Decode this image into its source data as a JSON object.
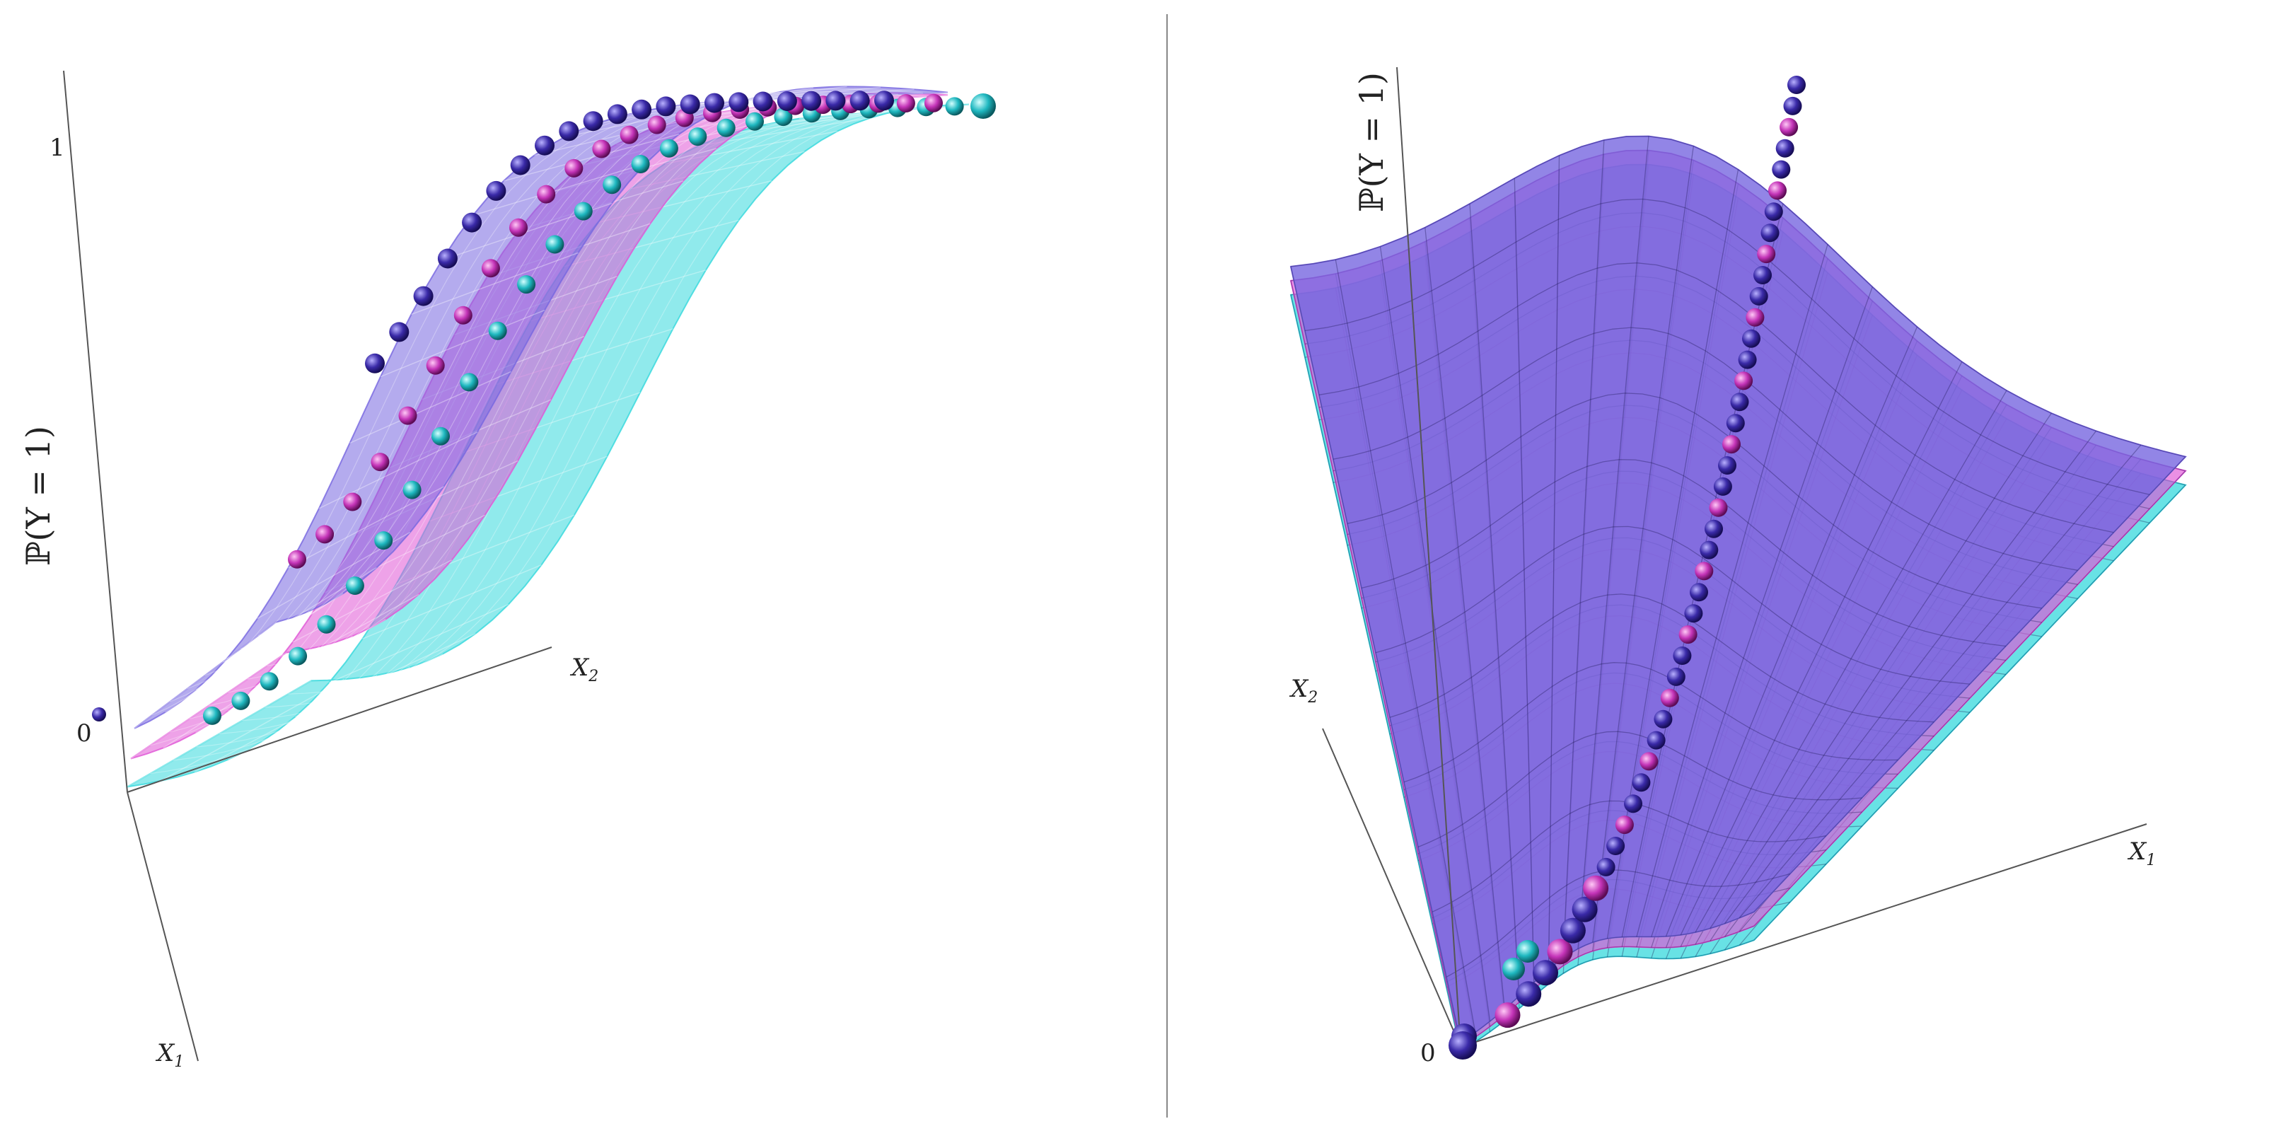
{
  "panels": [
    {
      "name": "left",
      "y_axis_label": "ℙ(Y = 1)",
      "tick_top": "1",
      "tick_origin": "0",
      "x1_label": "X",
      "x1_sub": "1",
      "x2_label": "X",
      "x2_sub": "2"
    },
    {
      "name": "right",
      "y_axis_label": "ℙ(Y = 1)",
      "tick_origin": "0",
      "x1_label": "X",
      "x1_sub": "1",
      "x2_label": "X",
      "x2_sub": "2"
    }
  ],
  "colors": {
    "surface_blue": "#7766e0",
    "surface_magenta": "#e055d6",
    "surface_cyan": "#35d8dc",
    "sphere_blue": "#3a2aa8",
    "sphere_magenta": "#c434b8",
    "sphere_cyan": "#1fb8c0",
    "divider": "#888888",
    "axis": "#555555"
  }
}
